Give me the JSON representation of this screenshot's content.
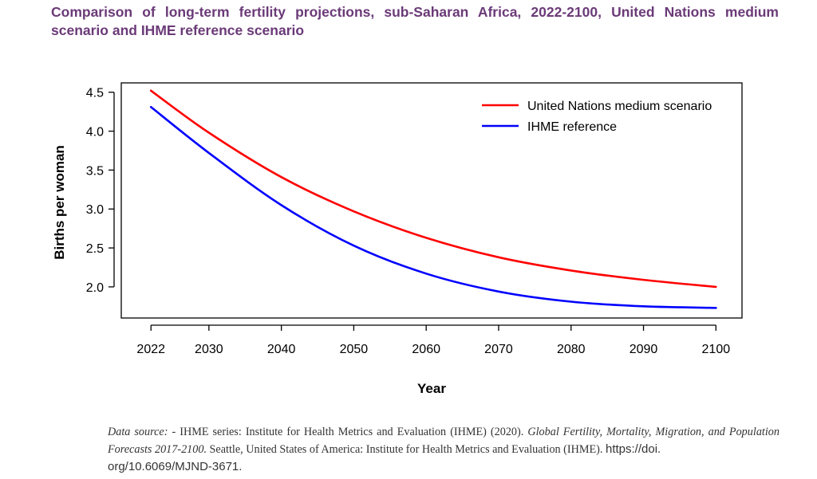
{
  "figure": {
    "title": "Comparison of long-term fertility projections, sub-Saharan Africa, 2022-2100, United Nations medium scenario and IHME reference scenario"
  },
  "source": {
    "label": "Data source:",
    "text_1": " - IHME series: Institute for Health Metrics and Evaluation (IHME) (2020). ",
    "publication": "Global Fertility, Mortality, Migration, and Population Forecasts 2017-2100.",
    "text_2": " Seattle, United States of America: Institute for Health Metrics and Evaluation (IHME). ",
    "url_part1": "https://doi.",
    "url_part2": "org/10.6069/MJND-3671."
  },
  "chart_data": {
    "type": "line",
    "xlabel": "Year",
    "ylabel": "Births per woman",
    "xlim": [
      2017.9,
      2103.6
    ],
    "ylim": [
      1.6,
      4.62
    ],
    "x_ticks": [
      2022,
      2030,
      2040,
      2050,
      2060,
      2070,
      2080,
      2090,
      2100
    ],
    "y_ticks": [
      2.0,
      2.5,
      3.0,
      3.5,
      4.0,
      4.5
    ],
    "y_tick_labels": [
      "2.0",
      "2.5",
      "3.0",
      "3.5",
      "4.0",
      "4.5"
    ],
    "legend_position": "top-right",
    "grid": false,
    "series": [
      {
        "name": "United Nations medium scenario",
        "color": "#ff0000",
        "x": [
          2022,
          2030,
          2040,
          2050,
          2060,
          2070,
          2080,
          2090,
          2100
        ],
        "values": [
          4.52,
          3.98,
          3.41,
          2.97,
          2.63,
          2.38,
          2.21,
          2.09,
          2.0
        ]
      },
      {
        "name": "IHME reference",
        "color": "#0000ff",
        "x": [
          2022,
          2030,
          2040,
          2050,
          2060,
          2070,
          2080,
          2090,
          2100
        ],
        "values": [
          4.31,
          3.72,
          3.05,
          2.53,
          2.17,
          1.94,
          1.81,
          1.75,
          1.73
        ]
      }
    ]
  }
}
